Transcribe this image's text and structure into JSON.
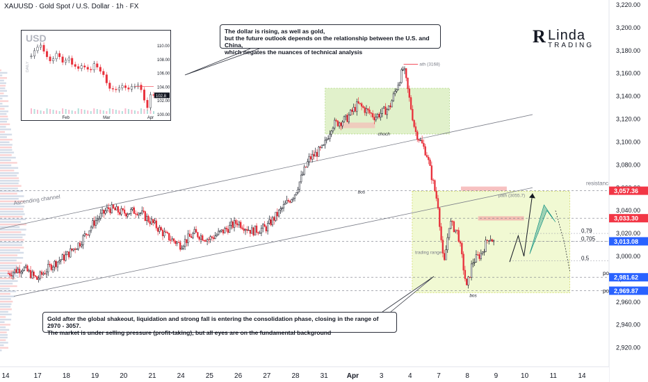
{
  "header": {
    "title": "XAUUSD · Gold Spot / U.S. Dollar · 1h · FX"
  },
  "callouts": {
    "top": [
      "The dollar is rising, as well as gold,",
      "but the future outlook depends on the relationship between the U.S. and China,",
      "which negates the nuances of technical analysis"
    ],
    "bottom": [
      "Gold after the global shakeout, liquidation and strong fall is entering the consolidation phase, closing in the range of 2970 - 3057.",
      "The market is under selling pressure (profit-taking), but all eyes are on the fundamental background"
    ]
  },
  "logo": {
    "mark": "R",
    "line1": "Linda",
    "line2": "TRADING"
  },
  "colors": {
    "up": "#089981",
    "down": "#f23645",
    "candle_red": "#e8303b",
    "channel": "#787b86",
    "zone": "#c8e6a0",
    "label_red": "#f23645",
    "label_blue": "#2962ff",
    "arrow": "#00897b"
  },
  "chart_data": {
    "type": "candlestick",
    "symbol": "XAUUSD",
    "timeframe": "1h",
    "ylim": [
      2910,
      3225
    ],
    "y_ticks": [
      3220,
      3200,
      3180,
      3160,
      3140,
      3120,
      3100,
      3080,
      3060,
      3040,
      3020,
      3000,
      2980,
      2960,
      2940,
      2920
    ],
    "x_ticks": [
      "14",
      "17",
      "18",
      "19",
      "20",
      "21",
      "24",
      "25",
      "26",
      "27",
      "28",
      "31",
      "Apr",
      "3",
      "4",
      "7",
      "8",
      "9",
      "10",
      "11",
      "14"
    ],
    "x_tick_index": [
      0,
      1,
      2,
      3,
      4,
      5,
      6,
      7,
      8,
      9,
      10,
      11,
      12,
      13,
      14,
      15,
      16,
      17,
      18,
      19,
      20
    ],
    "price_path": [
      [
        0,
        2985
      ],
      [
        0.5,
        2990
      ],
      [
        1,
        2980
      ],
      [
        1.5,
        2992
      ],
      [
        2,
        3000
      ],
      [
        2.5,
        3012
      ],
      [
        3,
        3030
      ],
      [
        3.5,
        3042
      ],
      [
        4,
        3038
      ],
      [
        4.5,
        3040
      ],
      [
        5,
        3030
      ],
      [
        5.5,
        3018
      ],
      [
        6,
        3010
      ],
      [
        6.5,
        3020
      ],
      [
        7,
        3015
      ],
      [
        7.5,
        3022
      ],
      [
        8,
        3030
      ],
      [
        8.5,
        3022
      ],
      [
        9,
        3025
      ],
      [
        9.5,
        3040
      ],
      [
        10,
        3055
      ],
      [
        10.5,
        3085
      ],
      [
        11,
        3095
      ],
      [
        11.3,
        3115
      ],
      [
        11.8,
        3120
      ],
      [
        12.2,
        3133
      ],
      [
        12.8,
        3122
      ],
      [
        13.3,
        3130
      ],
      [
        13.8,
        3165
      ],
      [
        14.2,
        3110
      ],
      [
        14.6,
        3090
      ],
      [
        15,
        3045
      ],
      [
        15.2,
        2990
      ],
      [
        15.4,
        3030
      ],
      [
        15.7,
        3020
      ],
      [
        16,
        2972
      ],
      [
        16.2,
        2995
      ],
      [
        16.5,
        3002
      ],
      [
        16.8,
        3018
      ],
      [
        17,
        3010
      ]
    ],
    "levels": [
      {
        "name": "resistance",
        "value": 3057.36,
        "label": "3,057.36",
        "color": "#f23645"
      },
      {
        "name": "level",
        "value": 3033.3,
        "label": "3,033.30",
        "color": "#f23645"
      },
      {
        "name": "current",
        "value": 3013.08,
        "label": "3,013.08",
        "color": "#2962ff"
      },
      {
        "name": "poi",
        "value": 2981.62,
        "label": "2,981.62",
        "color": "#2962ff"
      },
      {
        "name": "poi2",
        "value": 2969.87,
        "label": "2,969.87",
        "color": "#2962ff"
      }
    ],
    "fib": [
      {
        "label": "0.79",
        "value": 3020
      },
      {
        "label": "0.705",
        "value": 3013
      },
      {
        "label": "0.5",
        "value": 2996
      }
    ],
    "annotations": [
      {
        "text": "resistance",
        "value": 3060
      },
      {
        "text": "poi",
        "value": 2981.62
      },
      {
        "text": "poi",
        "value": 2969.87
      },
      {
        "text": "ath (3168)",
        "value": 3168
      },
      {
        "text": "choch",
        "value": 3105
      },
      {
        "text": "bos",
        "value": 3055
      },
      {
        "text": "bos",
        "value": 2967
      },
      {
        "text": "trading range",
        "value": 3002
      },
      {
        "text": "path (3055.7)",
        "value": 3055.7
      },
      {
        "text": "Ascending channel",
        "value": 3045
      }
    ],
    "inset": {
      "title": "USD",
      "ylim": [
        99.5,
        111
      ],
      "y_ticks": [
        "110.00",
        "108.00",
        "106.00",
        "104.00",
        "102.00",
        "100.00"
      ],
      "y_tick_values": [
        110,
        108,
        106,
        104,
        102,
        100
      ],
      "x_ticks": [
        "Feb",
        "Mar",
        "Apr"
      ],
      "side_label": "DAILY",
      "last_label": "102.8",
      "values": [
        108.5,
        109.3,
        109.8,
        110.1,
        109.2,
        108.4,
        107.8,
        108.1,
        108.9,
        108.4,
        107.6,
        107.9,
        108.2,
        107.3,
        107.0,
        106.7,
        107.1,
        106.9,
        106.6,
        106.5,
        107.4,
        106.9,
        106.3,
        105.8,
        104.6,
        103.8,
        103.7,
        103.6,
        103.9,
        104.2,
        103.9,
        103.7,
        104.1,
        104.1,
        104.3,
        103.6,
        102.1,
        101.0,
        102.9,
        102.8
      ]
    }
  }
}
